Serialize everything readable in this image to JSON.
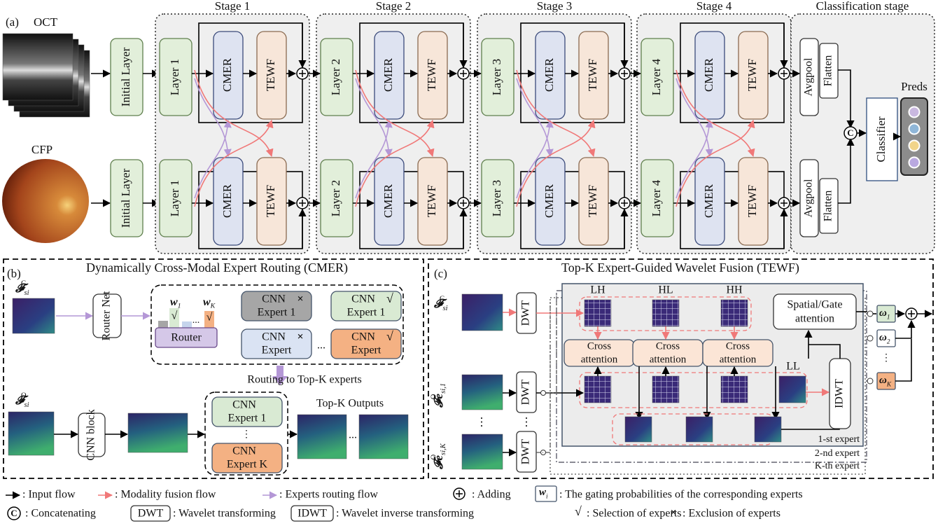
{
  "part_a": {
    "label": "(a)",
    "oct": "OCT",
    "cfp": "CFP",
    "initial_layer": "Initial Layer",
    "stages": [
      "Stage 1",
      "Stage 2",
      "Stage 3",
      "Stage 4"
    ],
    "classification_stage": "Classification stage",
    "layers": [
      "Layer 1",
      "Layer 2",
      "Layer 3",
      "Layer 4"
    ],
    "cmer": "CMER",
    "tewf": "TEWF",
    "avgpool": "Avgpool",
    "flatten": "Flatten",
    "concat": "C",
    "classifier": "Classifier",
    "preds": "Preds"
  },
  "part_b": {
    "label": "(b)",
    "title": "Dynamically Cross-Modal Expert Routing (CMER)",
    "f_c": {
      "base": "𝓕",
      "sub": "si",
      "sup": "C"
    },
    "f_o": {
      "base": "𝓕",
      "sub": "si",
      "sup": "O"
    },
    "router_net": "Router Net",
    "w1": {
      "base": "w",
      "sub": "1"
    },
    "wk": {
      "base": "w",
      "sub": "K"
    },
    "dots": "...",
    "router": "Router",
    "cnn": "CNN",
    "expert": "Expert",
    "expert_1": "Expert 1",
    "expert_k": "Expert K",
    "vdots": "⋮",
    "routing": "Routing to Top-K experts",
    "cnn_block": "CNN block",
    "top_k_outputs": "Top-K Outputs"
  },
  "part_c": {
    "label": "(c)",
    "title": "Top-K Expert-Guided Wavelet Fusion (TEWF)",
    "f_c": {
      "base": "𝓕",
      "sub": "si",
      "sup": "C"
    },
    "fe_1": {
      "base": "𝓕e",
      "sub": "si,1",
      "sup": "O"
    },
    "fe_k": {
      "base": "𝓕e",
      "sub": "si,K",
      "sup": "O"
    },
    "dwt": "DWT",
    "idwt": "IDWT",
    "subbands": [
      "LH",
      "HL",
      "HH",
      "LL"
    ],
    "cross_attention": [
      "Cross",
      "attention"
    ],
    "spatial_gate": [
      "Spatial/Gate",
      "attention"
    ],
    "omegas": [
      {
        "base": "ω",
        "sub": "1"
      },
      {
        "base": "ω",
        "sub": "2"
      },
      {
        "base": "ω",
        "sub": "K"
      }
    ],
    "experts": [
      "1-st expert",
      "2-nd expert",
      "K-th expert"
    ],
    "vdots": "⋮"
  },
  "legend": {
    "input_flow": ": Input flow",
    "modality_flow": ": Modality fusion flow",
    "routing_flow": ": Experts routing flow",
    "adding": ": Adding",
    "w_i": {
      "base": "w",
      "sub": "i"
    },
    "gating": ": The gating probabilities of the corresponding experts",
    "concat_symbol": "C",
    "concatenating": ": Concatenating",
    "wavelet": ": Wavelet transforming",
    "inverse_wavelet": ": Wavelet inverse transforming",
    "check": "√",
    "selection": ": Selection of experts",
    "cross": "×",
    "exclusion": ": Exclusion of experts"
  }
}
